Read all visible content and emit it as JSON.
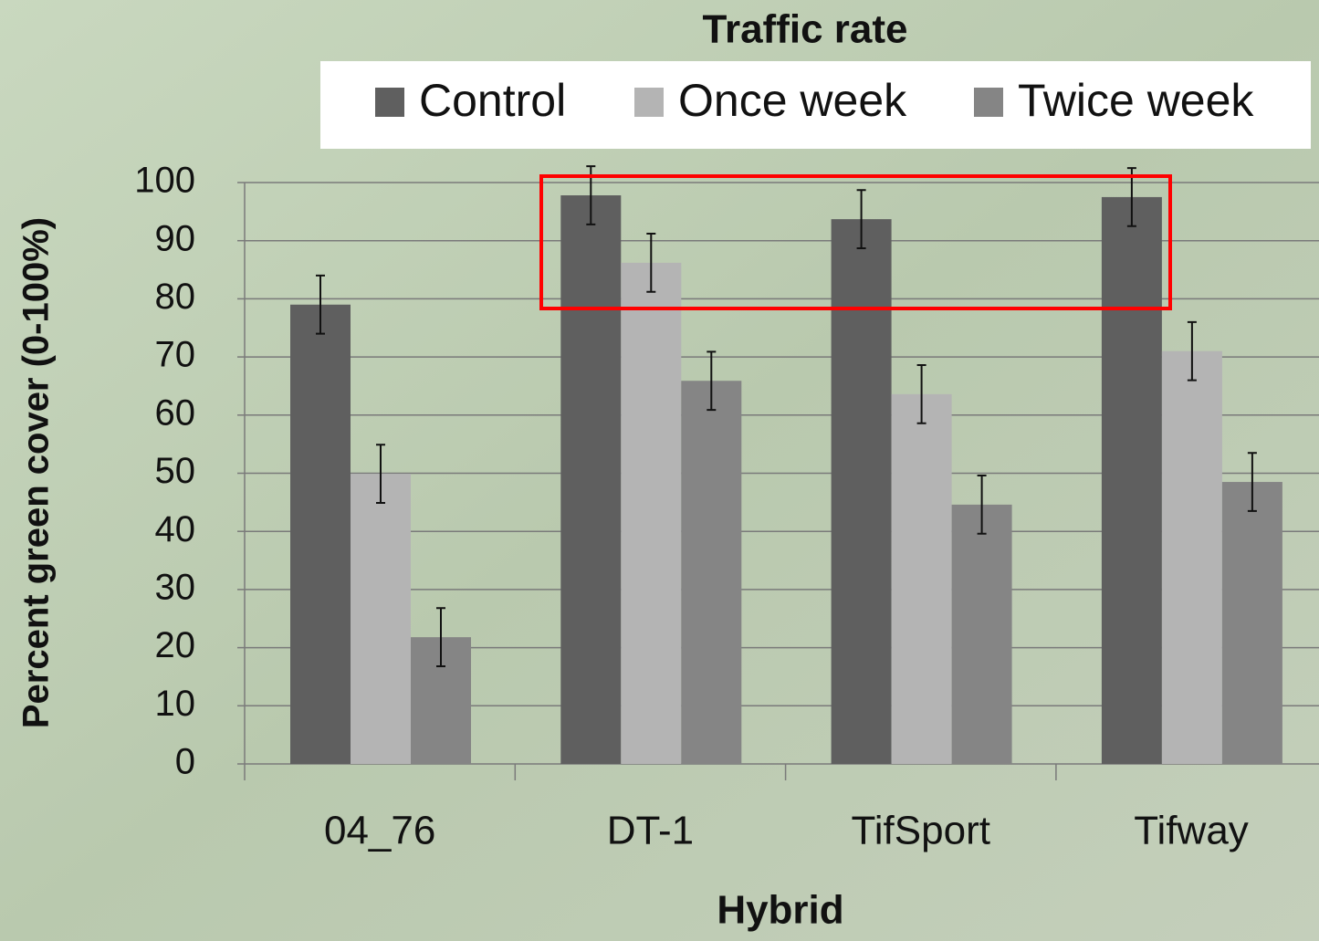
{
  "chart_data": {
    "type": "bar",
    "title": "Traffic rate",
    "x_label": "Hybrid",
    "y_label": "Percent green cover (0-100%)",
    "categories": [
      "04_76",
      "DT-1",
      "TifSport",
      "Tifway"
    ],
    "series": [
      {
        "name": "Control",
        "color": "#5f5f5f",
        "values": [
          79,
          97.8,
          93.7,
          97.5
        ],
        "errors": [
          5,
          5,
          5,
          5
        ]
      },
      {
        "name": "Once week",
        "color": "#b4b4b4",
        "values": [
          49.9,
          86.2,
          63.6,
          71
        ],
        "errors": [
          5,
          5,
          5,
          5
        ]
      },
      {
        "name": "Twice week",
        "color": "#858585",
        "values": [
          21.8,
          65.9,
          44.6,
          48.5
        ],
        "errors": [
          5,
          5,
          5,
          5
        ]
      }
    ],
    "ylim": [
      0,
      100
    ],
    "yticks": [
      0,
      10,
      20,
      30,
      40,
      50,
      60,
      70,
      80,
      90,
      100
    ],
    "grid": true,
    "legend": "top"
  }
}
